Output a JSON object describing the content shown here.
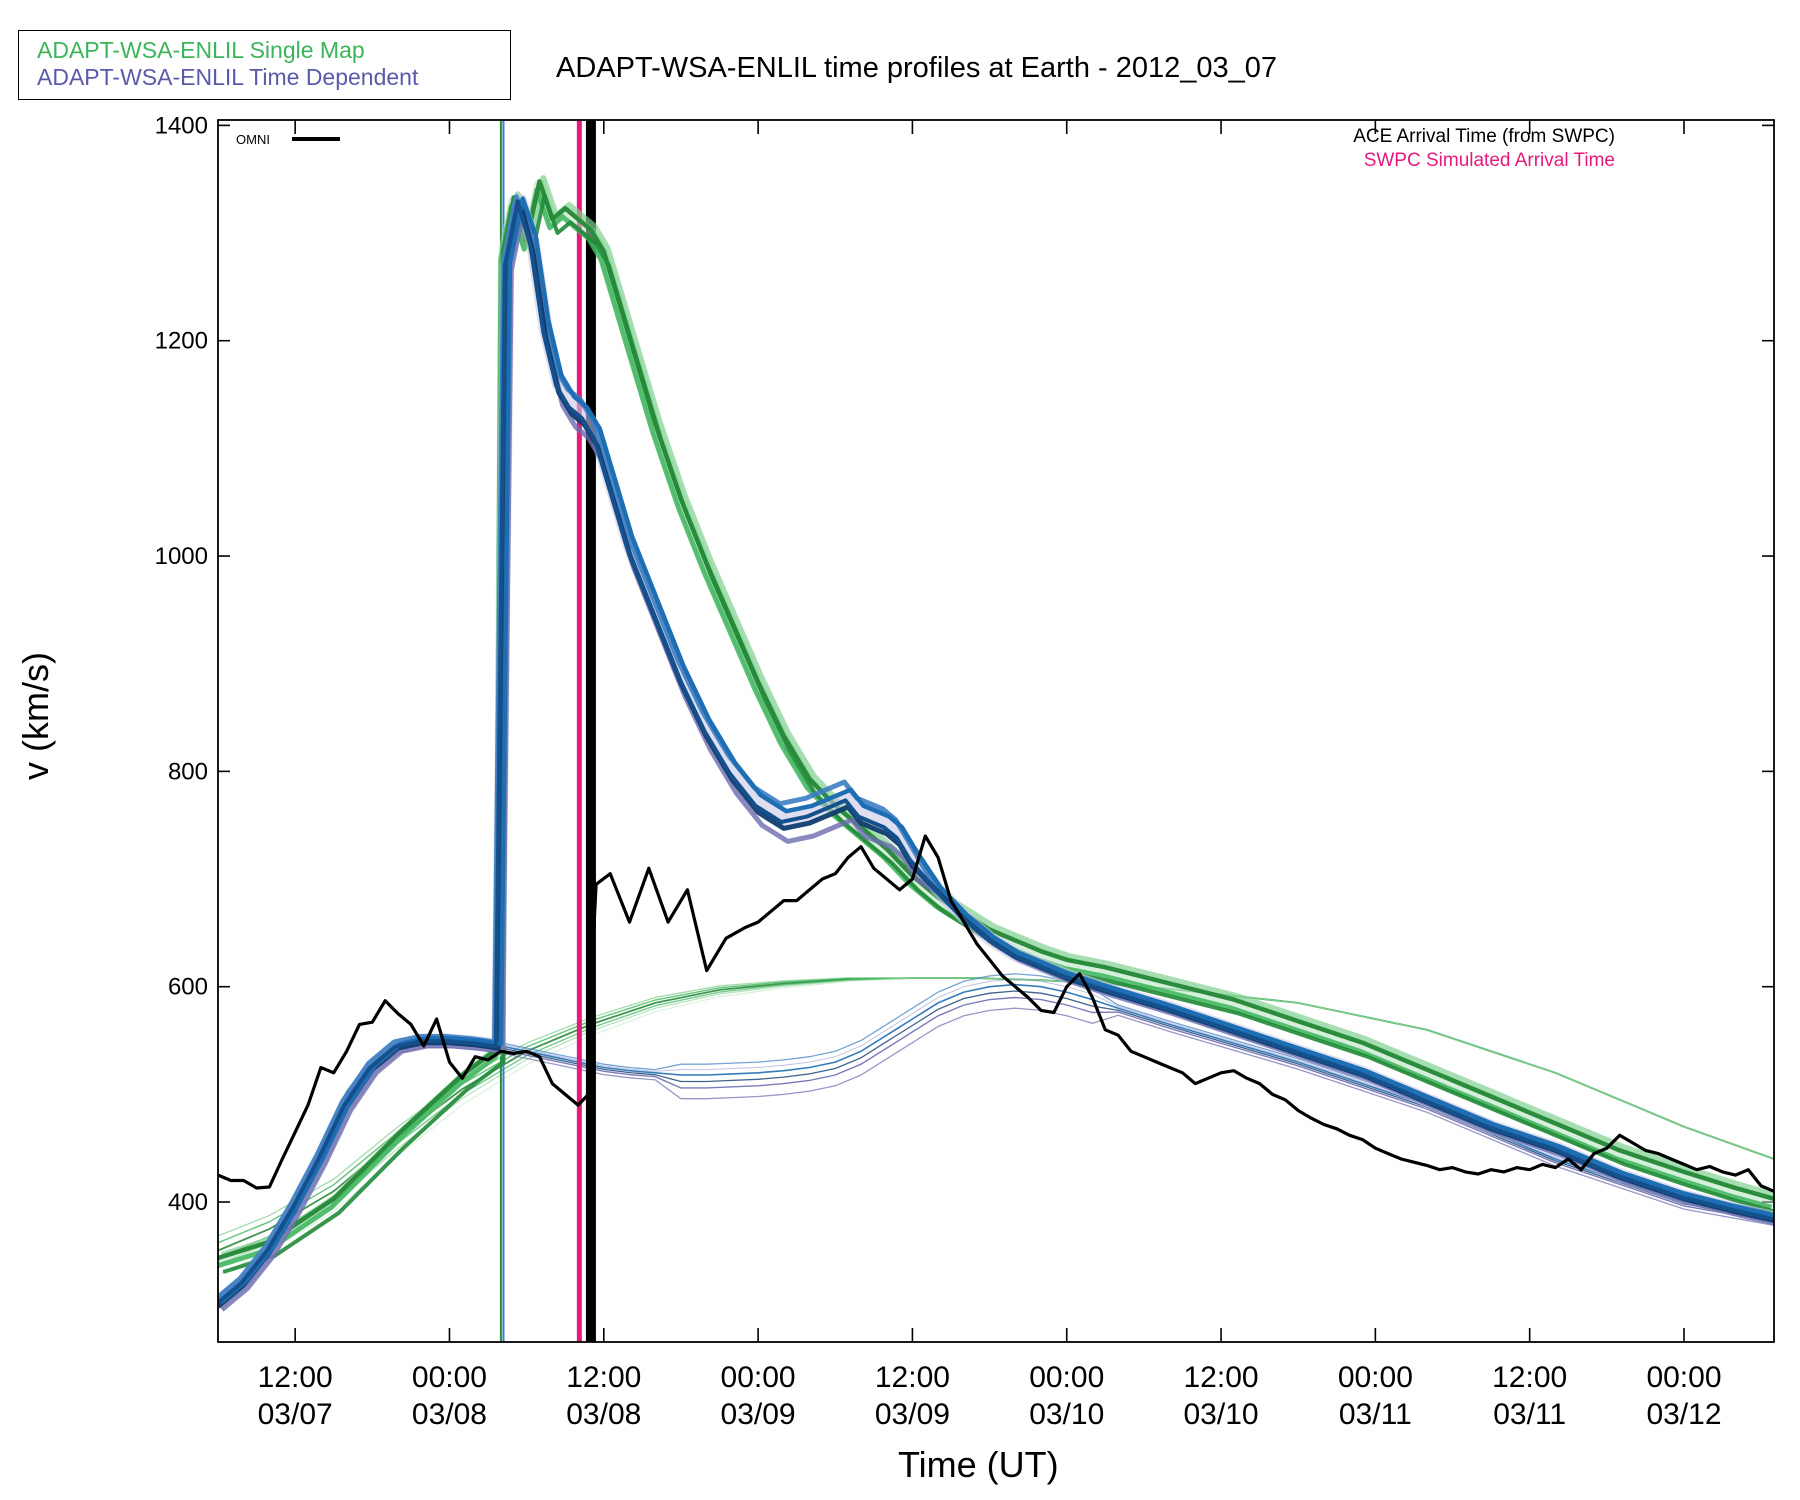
{
  "title": "ADAPT-WSA-ENLIL time profiles at Earth - 2012_03_07",
  "legend": {
    "single_map": {
      "label": "ADAPT-WSA-ENLIL Single Map",
      "color": "#3cb45a"
    },
    "time_dependent": {
      "label": "ADAPT-WSA-ENLIL Time Dependent",
      "color": "#5a5aaa"
    }
  },
  "omni_label": "OMNI",
  "arrival_legend": {
    "ace": {
      "label": "ACE Arrival Time (from SWPC)",
      "color": "#000000"
    },
    "swpc": {
      "label": "SWPC Simulated Arrival Time",
      "color": "#e6197d"
    }
  },
  "chart_data": {
    "type": "line",
    "title": "ADAPT-WSA-ENLIL time profiles at Earth - 2012_03_07",
    "xlabel": "Time (UT)",
    "ylabel": "v (km/s)",
    "xlim_hours": [
      6,
      127
    ],
    "ylim": [
      270,
      1405
    ],
    "yticks": [
      400,
      600,
      800,
      1000,
      1200,
      1400
    ],
    "xticks": [
      {
        "hour": 12,
        "top": "12:00",
        "bottom": "03/07"
      },
      {
        "hour": 24,
        "top": "00:00",
        "bottom": "03/08"
      },
      {
        "hour": 36,
        "top": "12:00",
        "bottom": "03/08"
      },
      {
        "hour": 48,
        "top": "00:00",
        "bottom": "03/09"
      },
      {
        "hour": 60,
        "top": "12:00",
        "bottom": "03/09"
      },
      {
        "hour": 72,
        "top": "00:00",
        "bottom": "03/10"
      },
      {
        "hour": 84,
        "top": "12:00",
        "bottom": "03/10"
      },
      {
        "hour": 96,
        "top": "00:00",
        "bottom": "03/11"
      },
      {
        "hour": 108,
        "top": "12:00",
        "bottom": "03/11"
      },
      {
        "hour": 120,
        "top": "00:00",
        "bottom": "03/12"
      }
    ],
    "vertical_markers": [
      {
        "name": "Time Dependent arrival",
        "hour": 28.2,
        "color": "#3c7dc3"
      },
      {
        "name": "Single Map arrival",
        "hour": 28.0,
        "color": "#2a8c3c"
      },
      {
        "name": "SWPC Simulated Arrival Time",
        "hour": 34.1,
        "color": "#e6197d"
      },
      {
        "name": "ACE Arrival Time (from SWPC)",
        "hour": 35.0,
        "color": "#000000"
      }
    ],
    "series": [
      {
        "name": "OMNI",
        "color": "#000000",
        "x": [
          6,
          7,
          8,
          9,
          10,
          11,
          12,
          13,
          14,
          15,
          16,
          17,
          18,
          19,
          20,
          21,
          22,
          23,
          24,
          25,
          26,
          27,
          28,
          29,
          30,
          31,
          32,
          33,
          34,
          34.8,
          35.0,
          35.4,
          36.5,
          38,
          39.5,
          41,
          42.5,
          44,
          45.5,
          47,
          48,
          49,
          50,
          51,
          52,
          53,
          54,
          55,
          56,
          57,
          58,
          59,
          60,
          61,
          62,
          63,
          64,
          65,
          66,
          67,
          68,
          69,
          70,
          71,
          72,
          73,
          74,
          75,
          76,
          77,
          78,
          79,
          80,
          81,
          82,
          83,
          84,
          85,
          86,
          87,
          88,
          89,
          90,
          91,
          92,
          93,
          94,
          95,
          96,
          97,
          98,
          99,
          100,
          101,
          102,
          103,
          104,
          105,
          106,
          107,
          108,
          109,
          110,
          111,
          112,
          113,
          114,
          115,
          116,
          117,
          118,
          119,
          120,
          121,
          122,
          123,
          124,
          125,
          126,
          127
        ],
        "y": [
          425,
          420,
          420,
          413,
          414,
          440,
          465,
          490,
          525,
          520,
          540,
          565,
          567,
          587,
          575,
          565,
          545,
          570,
          530,
          515,
          535,
          532,
          540,
          538,
          540,
          535,
          510,
          500,
          490,
          500,
          600,
          695,
          705,
          660,
          710,
          660,
          690,
          615,
          645,
          655,
          660,
          670,
          680,
          680,
          690,
          700,
          705,
          720,
          730,
          710,
          700,
          690,
          700,
          740,
          720,
          680,
          660,
          640,
          625,
          610,
          600,
          590,
          578,
          576,
          600,
          612,
          590,
          560,
          555,
          540,
          535,
          530,
          525,
          520,
          510,
          515,
          520,
          522,
          515,
          510,
          500,
          495,
          485,
          478,
          472,
          468,
          462,
          458,
          450,
          445,
          440,
          437,
          434,
          430,
          432,
          428,
          426,
          430,
          428,
          432,
          430,
          435,
          432,
          440,
          430,
          445,
          450,
          462,
          455,
          448,
          445,
          440,
          435,
          430,
          433,
          428,
          425,
          430,
          415,
          410
        ]
      },
      {
        "name": "Single Map (baseline)",
        "color": "#3cb45a",
        "kind": "background",
        "x": [
          6,
          10,
          15,
          20,
          25,
          30,
          35,
          40,
          45,
          50,
          55,
          60,
          65,
          70,
          75,
          80,
          90,
          100,
          110,
          120,
          127
        ],
        "y": [
          355,
          375,
          410,
          460,
          505,
          540,
          565,
          585,
          597,
          603,
          607,
          608,
          608,
          606,
          603,
          598,
          585,
          560,
          520,
          470,
          440
        ]
      },
      {
        "name": "Time Dependent (baseline)",
        "color": "#5a5aaa",
        "kind": "background",
        "x": [
          6,
          8,
          10,
          12,
          14,
          16,
          18,
          20,
          22,
          24,
          26,
          28,
          30,
          32,
          34,
          36,
          38,
          40,
          42,
          44,
          46,
          48,
          50,
          52,
          54,
          56,
          58,
          60,
          62,
          64,
          66,
          68,
          70,
          72,
          74,
          76,
          80,
          90,
          100,
          110,
          120,
          127
        ],
        "y": [
          310,
          330,
          360,
          400,
          450,
          500,
          530,
          545,
          550,
          550,
          548,
          545,
          540,
          535,
          530,
          525,
          522,
          520,
          518,
          518,
          519,
          520,
          522,
          525,
          530,
          540,
          555,
          570,
          585,
          595,
          600,
          602,
          600,
          595,
          588,
          580,
          565,
          530,
          490,
          440,
          400,
          385
        ]
      },
      {
        "name": "Single Map (CME)",
        "color": "#2a8c3c",
        "kind": "main",
        "x": [
          6,
          10,
          15,
          20,
          25,
          27.8,
          28.2,
          29,
          30,
          31,
          32,
          33,
          34,
          35,
          36,
          38,
          40,
          42,
          44,
          46,
          48,
          50,
          52,
          54,
          56,
          58,
          60,
          62,
          64,
          66,
          68,
          70,
          72,
          75,
          80,
          85,
          90,
          95,
          100,
          105,
          110,
          115,
          120,
          124,
          127
        ],
        "y": [
          345,
          360,
          400,
          460,
          515,
          540,
          1280,
          1330,
          1290,
          1345,
          1310,
          1320,
          1310,
          1300,
          1280,
          1200,
          1120,
          1050,
          990,
          935,
          880,
          830,
          790,
          765,
          745,
          725,
          700,
          680,
          665,
          650,
          640,
          630,
          622,
          615,
          600,
          585,
          565,
          545,
          520,
          495,
          470,
          445,
          425,
          410,
          400
        ]
      },
      {
        "name": "Time Dependent (CME)",
        "color": "#1e6eb4",
        "kind": "main",
        "x": [
          6,
          8,
          10,
          12,
          14,
          16,
          18,
          20,
          22,
          24,
          26,
          27.8,
          28.5,
          29.5,
          30.5,
          31.5,
          32.5,
          33.5,
          34.5,
          35.5,
          36.5,
          38,
          40,
          42,
          44,
          46,
          48,
          50,
          52,
          54,
          55,
          56,
          57,
          58,
          59,
          60,
          62,
          64,
          66,
          68,
          70,
          72,
          75,
          80,
          85,
          90,
          95,
          100,
          105,
          110,
          115,
          120,
          124,
          127
        ],
        "y": [
          305,
          325,
          355,
          395,
          440,
          490,
          525,
          545,
          550,
          550,
          548,
          545,
          1270,
          1330,
          1290,
          1210,
          1160,
          1140,
          1130,
          1110,
          1070,
          1010,
          950,
          890,
          840,
          800,
          770,
          755,
          760,
          770,
          775,
          760,
          755,
          750,
          740,
          720,
          690,
          665,
          645,
          630,
          620,
          610,
          598,
          580,
          560,
          540,
          520,
          495,
          470,
          450,
          425,
          405,
          393,
          385
        ]
      }
    ]
  }
}
